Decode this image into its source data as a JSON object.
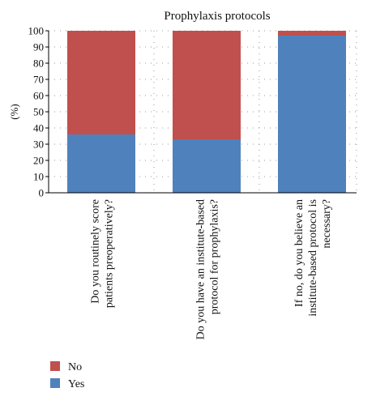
{
  "chart_data": {
    "type": "bar",
    "stacked": true,
    "title": "Prophylaxis protocols",
    "ylabel": "(%)",
    "xlabel": "",
    "ylim": [
      0,
      100
    ],
    "yticks": [
      0,
      10,
      20,
      30,
      40,
      50,
      60,
      70,
      80,
      90,
      100
    ],
    "grid": "dotted",
    "legend_position": "bottom-left",
    "categories": [
      [
        "Do you routinely score",
        "patients preoperatively?"
      ],
      [
        "Do you have an institute-based",
        "protocol for prophylaxis?"
      ],
      [
        "If no, do you believe an",
        "institute-based protocol is",
        "necessary?"
      ]
    ],
    "series": [
      {
        "name": "Yes",
        "color": "#4F81BD",
        "values": [
          36,
          33,
          97
        ]
      },
      {
        "name": "No",
        "color": "#C0504D",
        "values": [
          64,
          67,
          3
        ]
      }
    ],
    "legend_order": [
      "No",
      "Yes"
    ]
  }
}
